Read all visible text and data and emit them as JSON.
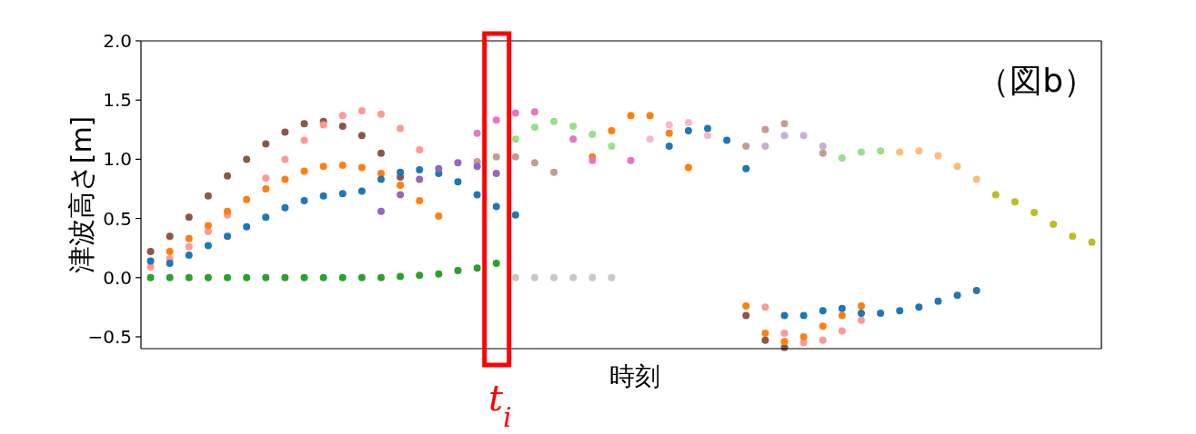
{
  "chart_data": {
    "type": "scatter",
    "xlabel": "時刻",
    "ylabel": "津波高さ[m]",
    "annotations": [
      "（図b）",
      "t$_{i}$"
    ],
    "categories": [
      null,
      null,
      null,
      null,
      null,
      null,
      null,
      null,
      null,
      null,
      null,
      null,
      null,
      null,
      null,
      null,
      null,
      null,
      null,
      null,
      null,
      null,
      null,
      null,
      null,
      null,
      null,
      null,
      null,
      null,
      null,
      null,
      null,
      null,
      null,
      null,
      null,
      null,
      null,
      null,
      null,
      null,
      null,
      null,
      null,
      null,
      null,
      null,
      null,
      null
    ],
    "ylim": [
      -0.6,
      2.0
    ],
    "yticks": [
      {
        "value": -0.5,
        "label": "−0.5"
      },
      {
        "value": 0,
        "label": "0.0"
      },
      {
        "value": 0.5,
        "label": "0.5"
      },
      {
        "value": 1,
        "label": "1.0"
      },
      {
        "value": 1.5,
        "label": "1.5"
      },
      {
        "value": 2,
        "label": "2.0"
      }
    ],
    "tick_labels": "y",
    "marker": "circle",
    "series": [
      {
        "color": "#8c564b",
        "values": [
          0.22,
          0.35,
          0.51,
          0.69,
          0.86,
          1.0,
          1.13,
          1.23,
          1.3,
          1.32,
          1.28,
          1.2,
          1.05,
          0.85,
          null,
          null,
          null,
          null,
          null,
          null,
          null,
          null,
          null,
          null,
          null,
          null,
          null,
          null,
          null,
          null,
          null,
          -0.32,
          -0.53,
          -0.59,
          null,
          null,
          null,
          null,
          null,
          null,
          null,
          null,
          null,
          null,
          null,
          null,
          null,
          null,
          null,
          null
        ]
      },
      {
        "color": "#ff9896",
        "values": [
          0.09,
          0.16,
          0.26,
          0.39,
          0.53,
          null,
          0.84,
          1.0,
          1.16,
          1.29,
          1.37,
          1.41,
          1.38,
          1.26,
          1.08,
          null,
          null,
          null,
          null,
          null,
          null,
          null,
          null,
          null,
          null,
          null,
          null,
          null,
          null,
          null,
          null,
          null,
          -0.25,
          -0.47,
          -0.55,
          -0.53,
          -0.45,
          -0.36,
          null,
          null,
          null,
          null,
          null,
          null,
          null,
          null,
          null,
          null,
          null,
          null
        ]
      },
      {
        "color": "#ff7f0e",
        "values": [
          null,
          0.22,
          0.33,
          0.44,
          0.56,
          0.66,
          0.75,
          0.83,
          0.9,
          0.94,
          0.95,
          0.93,
          0.88,
          0.78,
          0.65,
          0.52,
          null,
          null,
          null,
          null,
          null,
          null,
          null,
          1.02,
          1.24,
          1.37,
          1.37,
          1.22,
          0.93,
          null,
          null,
          -0.24,
          -0.47,
          -0.54,
          -0.5,
          -0.41,
          -0.32,
          -0.24,
          null,
          null,
          null,
          null,
          null,
          null,
          null,
          null,
          null,
          null,
          null,
          null
        ]
      },
      {
        "color": "#1f77b4",
        "values": [
          0.14,
          0.12,
          0.19,
          0.27,
          0.35,
          0.43,
          0.51,
          0.59,
          0.65,
          0.69,
          0.71,
          0.73,
          0.83,
          0.89,
          0.91,
          0.88,
          0.81,
          0.7,
          0.6,
          0.53,
          null,
          null,
          null,
          null,
          null,
          null,
          null,
          1.11,
          1.24,
          1.26,
          1.16,
          0.92,
          null,
          -0.32,
          -0.32,
          -0.28,
          -0.26,
          -0.3,
          -0.3,
          -0.28,
          -0.25,
          -0.2,
          -0.15,
          -0.11,
          null,
          null,
          null,
          null,
          null,
          null
        ]
      },
      {
        "color": "#e377c2",
        "values": [
          null,
          null,
          null,
          null,
          null,
          null,
          null,
          null,
          null,
          null,
          null,
          null,
          null,
          null,
          null,
          null,
          null,
          1.22,
          1.33,
          1.39,
          1.4,
          null,
          1.17,
          0.99,
          null,
          0.99,
          null,
          null,
          null,
          null,
          null,
          null,
          null,
          null,
          null,
          null,
          null,
          null,
          null,
          null,
          null,
          null,
          null,
          null,
          null,
          null,
          null,
          null,
          null,
          null
        ]
      },
      {
        "color": "#f7b6d2",
        "values": [
          null,
          null,
          null,
          null,
          null,
          null,
          null,
          null,
          null,
          null,
          null,
          null,
          null,
          null,
          null,
          null,
          null,
          null,
          null,
          null,
          null,
          null,
          null,
          null,
          null,
          null,
          1.17,
          1.29,
          1.31,
          1.2,
          null,
          null,
          null,
          null,
          null,
          null,
          null,
          null,
          null,
          null,
          null,
          null,
          null,
          null,
          null,
          null,
          null,
          null,
          null,
          null
        ]
      },
      {
        "color": "#98df8a",
        "values": [
          null,
          null,
          null,
          null,
          null,
          null,
          null,
          null,
          null,
          null,
          null,
          null,
          null,
          null,
          null,
          null,
          null,
          null,
          null,
          1.17,
          1.27,
          1.32,
          1.28,
          1.21,
          1.11,
          null,
          null,
          null,
          null,
          null,
          null,
          null,
          null,
          null,
          null,
          null,
          1.01,
          1.06,
          1.07,
          null,
          null,
          null,
          null,
          null,
          null,
          null,
          null,
          null,
          null,
          null
        ]
      },
      {
        "color": "#c49c94",
        "values": [
          null,
          null,
          null,
          null,
          null,
          null,
          null,
          null,
          null,
          null,
          null,
          null,
          null,
          null,
          null,
          null,
          null,
          0.98,
          1.02,
          1.02,
          0.97,
          0.89,
          null,
          null,
          null,
          null,
          null,
          null,
          null,
          null,
          null,
          1.11,
          1.25,
          1.3,
          null,
          1.05,
          null,
          null,
          null,
          null,
          null,
          null,
          null,
          null,
          null,
          null,
          null,
          null,
          null,
          null
        ]
      },
      {
        "color": "#c5b0d5",
        "values": [
          null,
          null,
          null,
          null,
          null,
          null,
          null,
          null,
          null,
          null,
          null,
          null,
          null,
          null,
          null,
          null,
          null,
          null,
          null,
          null,
          null,
          null,
          null,
          null,
          null,
          null,
          null,
          null,
          null,
          null,
          null,
          null,
          1.11,
          1.2,
          1.2,
          1.11,
          null,
          null,
          null,
          null,
          null,
          null,
          null,
          null,
          null,
          null,
          null,
          null,
          null,
          null
        ]
      },
      {
        "color": "#ffbb78",
        "values": [
          null,
          null,
          null,
          null,
          null,
          null,
          null,
          null,
          null,
          null,
          null,
          null,
          null,
          null,
          null,
          null,
          null,
          null,
          null,
          null,
          null,
          null,
          null,
          null,
          null,
          null,
          null,
          null,
          null,
          null,
          null,
          null,
          null,
          null,
          null,
          null,
          null,
          null,
          null,
          1.06,
          1.07,
          1.03,
          0.94,
          0.83,
          null,
          null,
          null,
          null,
          null,
          null
        ]
      },
      {
        "color": "#bcbd22",
        "values": [
          null,
          null,
          null,
          null,
          null,
          null,
          null,
          null,
          null,
          null,
          null,
          null,
          null,
          null,
          null,
          null,
          null,
          null,
          null,
          null,
          null,
          null,
          null,
          null,
          null,
          null,
          null,
          null,
          null,
          null,
          null,
          null,
          null,
          null,
          null,
          null,
          null,
          null,
          null,
          null,
          null,
          null,
          null,
          null,
          0.7,
          0.64,
          0.55,
          0.45,
          0.35,
          0.3
        ]
      },
      {
        "color": "#9467bd",
        "values": [
          null,
          null,
          null,
          null,
          null,
          null,
          null,
          null,
          null,
          null,
          null,
          null,
          0.56,
          0.7,
          0.83,
          0.92,
          0.97,
          0.94,
          0.88,
          null,
          null,
          null,
          null,
          null,
          null,
          null,
          null,
          null,
          null,
          null,
          null,
          null,
          null,
          null,
          null,
          null,
          null,
          null,
          null,
          null,
          null,
          null,
          null,
          null,
          null,
          null,
          null,
          null,
          null,
          null
        ]
      },
      {
        "color": "#2ca02c",
        "values": [
          0.0,
          0.0,
          0.0,
          0.0,
          0.0,
          0.0,
          0.0,
          0.0,
          0.0,
          0.0,
          0.0,
          0.0,
          0.0,
          0.01,
          0.02,
          0.03,
          0.06,
          0.08,
          0.12,
          null,
          null,
          null,
          null,
          null,
          null,
          null,
          null,
          null,
          null,
          null,
          null,
          null,
          null,
          null,
          null,
          null,
          null,
          null,
          null,
          null,
          null,
          null,
          null,
          null,
          null,
          null,
          null,
          null,
          null,
          null
        ]
      },
      {
        "color": "#c7c7c7",
        "values": [
          null,
          null,
          null,
          null,
          null,
          null,
          null,
          null,
          null,
          null,
          null,
          null,
          null,
          null,
          null,
          null,
          null,
          null,
          null,
          0.0,
          0.0,
          0.0,
          0.0,
          0.0,
          0.0,
          null,
          null,
          null,
          null,
          null,
          null,
          null,
          null,
          null,
          null,
          null,
          null,
          null,
          null,
          null,
          null,
          null,
          null,
          null,
          null,
          null,
          null,
          null,
          null,
          null
        ]
      }
    ]
  }
}
